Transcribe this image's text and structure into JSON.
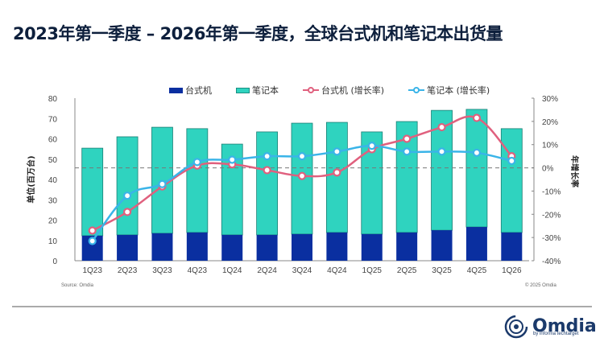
{
  "title": "2023年第一季度 – 2026年第一季度，全球台式机和笔记本出货量",
  "source": "Source: Omdia",
  "copyright": "© 2025 Omdia",
  "logo": {
    "name": "Omdia",
    "tagline": "by informa techtarget"
  },
  "colors": {
    "desktop": "#0a2fa0",
    "notebook": "#2fd3bf",
    "desktop_growth": "#e0607e",
    "notebook_growth": "#3ab4e8",
    "title": "#0d1f3c"
  },
  "chart_data": {
    "type": "bar",
    "title": "2023年第一季度 – 2026年第一季度，全球台式机和笔记本出货量",
    "categories": [
      "1Q23",
      "2Q23",
      "3Q23",
      "4Q23",
      "1Q24",
      "2Q24",
      "3Q24",
      "4Q24",
      "1Q25",
      "2Q25",
      "3Q25",
      "4Q25",
      "1Q26"
    ],
    "ylabel": "单位(百万台)",
    "y2label": "年增长率",
    "ylim": [
      0,
      80
    ],
    "yticks": [
      "0",
      "10",
      "20",
      "30",
      "40",
      "50",
      "60",
      "70",
      "80"
    ],
    "y2lim": [
      -40,
      30
    ],
    "y2ticks": [
      "-40%",
      "-30%",
      "-20%",
      "-10%",
      "0%",
      "10%",
      "20%",
      "30%"
    ],
    "legend_position": "top",
    "series": [
      {
        "name": "台式机",
        "kind": "bar-stacked",
        "axis": "left",
        "values": [
          12.3,
          12.7,
          13.5,
          13.9,
          12.7,
          12.7,
          13.1,
          13.9,
          13.1,
          13.9,
          15.0,
          16.6,
          13.9
        ]
      },
      {
        "name": "笔记本",
        "kind": "bar-stacked",
        "axis": "left",
        "values": [
          43.1,
          48.3,
          52.2,
          51.1,
          44.7,
          50.7,
          54.6,
          54.2,
          50.3,
          54.6,
          59.0,
          57.9,
          51.1
        ]
      },
      {
        "name": "台式机 (增长率)",
        "kind": "line",
        "axis": "right",
        "unit": "%",
        "values": [
          -27,
          -19,
          -8,
          1,
          1.5,
          -1,
          -3.5,
          -2,
          8,
          12.5,
          17.5,
          21.5,
          5
        ]
      },
      {
        "name": "笔记本 (增长率)",
        "kind": "line",
        "axis": "right",
        "unit": "%",
        "values": [
          -31.5,
          -12,
          -7,
          2.5,
          3.5,
          5,
          5,
          7,
          9.5,
          7,
          7,
          6.5,
          3
        ]
      }
    ],
    "reference_line": {
      "axis": "right",
      "value": 0,
      "style": "dashed"
    }
  }
}
